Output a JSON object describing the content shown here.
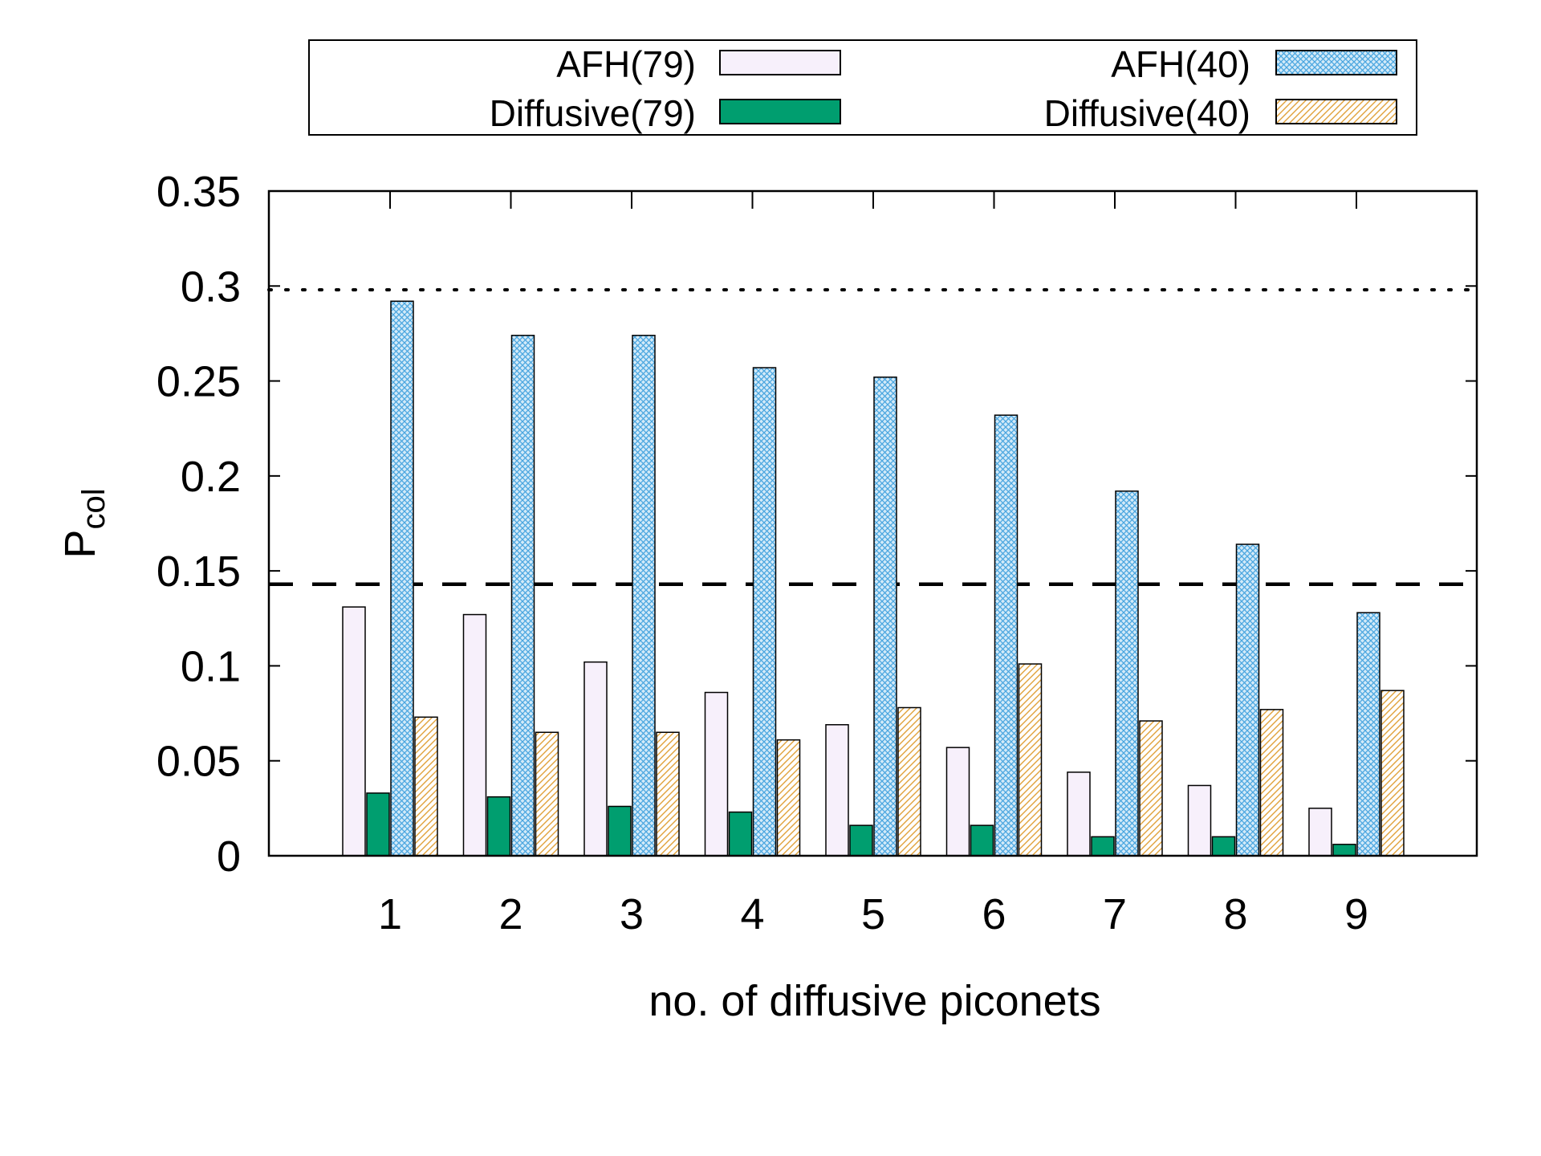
{
  "chart_data": {
    "type": "bar",
    "xlabel": "no. of diffusive piconets",
    "ylabel": {
      "main": "P",
      "sub": "col"
    },
    "categories": [
      "1",
      "2",
      "3",
      "4",
      "5",
      "6",
      "7",
      "8",
      "9"
    ],
    "ylim": [
      0,
      0.35
    ],
    "yticks": [
      0,
      0.05,
      0.1,
      0.15,
      0.2,
      0.25,
      0.3,
      0.35
    ],
    "ytick_labels": [
      "0",
      "0.05",
      "0.1",
      "0.15",
      "0.2",
      "0.25",
      "0.3",
      "0.35"
    ],
    "grid": false,
    "legend_position": "top",
    "series": [
      {
        "name": "AFH(79)",
        "color": "#f7f0fb",
        "pattern": "solid-light",
        "values": [
          0.131,
          0.127,
          0.102,
          0.086,
          0.069,
          0.057,
          0.044,
          0.037,
          0.025
        ]
      },
      {
        "name": "Diffusive(79)",
        "color": "#009e6f",
        "pattern": "solid",
        "values": [
          0.033,
          0.031,
          0.026,
          0.023,
          0.016,
          0.016,
          0.01,
          0.01,
          0.006
        ]
      },
      {
        "name": "AFH(40)",
        "color": "#5bb4e8",
        "pattern": "crosshatch",
        "values": [
          0.292,
          0.274,
          0.274,
          0.257,
          0.252,
          0.232,
          0.192,
          0.164,
          0.128
        ]
      },
      {
        "name": "Diffusive(40)",
        "color": "#e8a93a",
        "pattern": "diagonal",
        "values": [
          0.073,
          0.065,
          0.065,
          0.061,
          0.078,
          0.101,
          0.071,
          0.077,
          0.087
        ]
      }
    ],
    "reference_lines": [
      {
        "style": "dotted",
        "y": 0.298
      },
      {
        "style": "dashed",
        "y": 0.143
      }
    ]
  }
}
